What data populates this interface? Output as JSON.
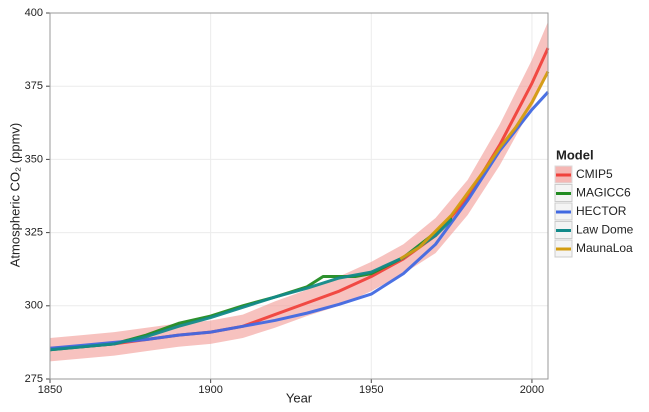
{
  "chart_data": {
    "type": "line",
    "x_label": "Year",
    "y_label": "Atmospheric CO₂ (ppmv)",
    "legend_title": "Model",
    "legend": "right",
    "grid": true,
    "xlim": [
      1850,
      2005
    ],
    "ylim": [
      275,
      400
    ],
    "xticks": [
      1850,
      1900,
      1950,
      2000
    ],
    "yticks": [
      275,
      300,
      325,
      350,
      375,
      400
    ],
    "series": [
      {
        "name": "CMIP5",
        "color": "#f0423c",
        "band_color": "#f29a95",
        "x": [
          1850,
          1860,
          1870,
          1880,
          1890,
          1900,
          1910,
          1920,
          1930,
          1940,
          1950,
          1960,
          1970,
          1980,
          1990,
          2000,
          2005
        ],
        "values": [
          285.5,
          286,
          287,
          288.5,
          290,
          291,
          293,
          297,
          301,
          305,
          310,
          316,
          324,
          337,
          355,
          376,
          388
        ],
        "upper": [
          289,
          290,
          291,
          292.5,
          294,
          295,
          297,
          301.5,
          305.5,
          310,
          315,
          321,
          330,
          343,
          362,
          384,
          397
        ],
        "lower": [
          281,
          282,
          283,
          284.5,
          286,
          287,
          289,
          292.5,
          296.5,
          300,
          305,
          311,
          318,
          331,
          348,
          368,
          379
        ]
      },
      {
        "name": "MAGICC6",
        "color": "#228b22",
        "x": [
          1850,
          1860,
          1870,
          1880,
          1890,
          1900,
          1910,
          1920,
          1930,
          1935,
          1945,
          1950,
          1960,
          1970,
          1975
        ],
        "values": [
          285,
          286,
          287,
          290,
          294,
          296.5,
          300,
          303,
          306.5,
          310,
          310,
          311,
          316.5,
          325,
          330
        ]
      },
      {
        "name": "HECTOR",
        "color": "#4169e1",
        "x": [
          1850,
          1860,
          1870,
          1880,
          1890,
          1900,
          1910,
          1920,
          1930,
          1940,
          1950,
          1960,
          1970,
          1980,
          1990,
          2000,
          2005
        ],
        "values": [
          285.5,
          286.5,
          287.5,
          288.5,
          290,
          291,
          293,
          295,
          297.5,
          300.5,
          304,
          311,
          321,
          336,
          353,
          367,
          373
        ]
      },
      {
        "name": "Law Dome",
        "color": "#138a8a",
        "x": [
          1850,
          1870,
          1880,
          1890,
          1900,
          1910,
          1920,
          1930,
          1940,
          1950,
          1960,
          1970,
          1975
        ],
        "values": [
          285,
          287,
          289.5,
          293,
          296,
          299.5,
          303,
          306,
          309.5,
          311.5,
          316.5,
          324,
          329.5
        ]
      },
      {
        "name": "MaunaLoa",
        "color": "#d39c0f",
        "x": [
          1959,
          1965,
          1970,
          1975,
          1980,
          1985,
          1990,
          1995,
          2000,
          2005
        ],
        "values": [
          316,
          320,
          325.5,
          331,
          338.5,
          346,
          354,
          361,
          369.5,
          380
        ]
      }
    ]
  }
}
